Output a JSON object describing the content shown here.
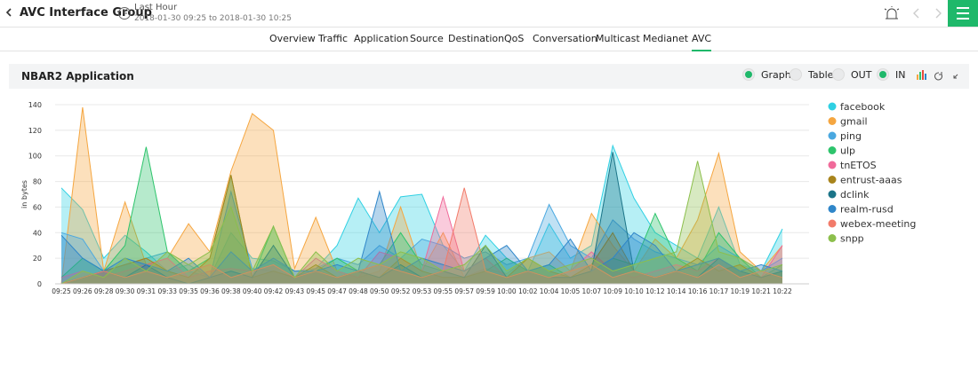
{
  "header": {
    "title": "AVC Interface Group",
    "time_label": "Last Hour",
    "time_range": "2018-01-30 09:25 to 2018-01-30 10:25"
  },
  "tabs": {
    "items": [
      "Overview",
      "Traffic",
      "Application",
      "Source",
      "Destination",
      "QoS",
      "Conversation",
      "Multicast",
      "Medianet",
      "AVC"
    ],
    "active": "AVC"
  },
  "panel": {
    "title": "NBAR2 Application",
    "options": [
      "Graph",
      "Table",
      "OUT",
      "IN"
    ],
    "selected": [
      "Graph",
      "IN"
    ]
  },
  "chart_data": {
    "type": "area",
    "y_label": "in bytes",
    "categories": [
      "09:25",
      "09:26",
      "09:28",
      "09:30",
      "09:31",
      "09:33",
      "09:35",
      "09:36",
      "09:38",
      "09:40",
      "09:42",
      "09:43",
      "09:45",
      "09:47",
      "09:48",
      "09:50",
      "09:52",
      "09:53",
      "09:55",
      "09:57",
      "09:59",
      "10:00",
      "10:02",
      "10:04",
      "10:05",
      "10:07",
      "10:09",
      "10:10",
      "10:12",
      "10:14",
      "10:16",
      "10:17",
      "10:19",
      "10:21",
      "10:22"
    ],
    "ylim": [
      0,
      140
    ],
    "yticks": [
      0,
      20,
      40,
      60,
      80,
      100,
      120,
      140
    ],
    "grid": true,
    "legend": "right",
    "series": [
      {
        "name": "facebook",
        "color": "#2fd0e3",
        "values": [
          75,
          58,
          20,
          38,
          25,
          10,
          15,
          5,
          40,
          20,
          18,
          10,
          12,
          30,
          67,
          40,
          68,
          70,
          30,
          10,
          38,
          20,
          10,
          47,
          20,
          30,
          108,
          67,
          40,
          30,
          20,
          60,
          15,
          10,
          43
        ]
      },
      {
        "name": "gmail",
        "color": "#f5a640",
        "values": [
          0,
          138,
          10,
          64,
          15,
          20,
          47,
          25,
          88,
          133,
          120,
          12,
          52,
          10,
          5,
          10,
          60,
          10,
          40,
          5,
          12,
          8,
          20,
          25,
          10,
          55,
          30,
          10,
          35,
          20,
          50,
          102,
          25,
          10,
          30
        ]
      },
      {
        "name": "ping",
        "color": "#4aa8e0",
        "values": [
          40,
          35,
          10,
          15,
          20,
          25,
          10,
          5,
          72,
          12,
          10,
          5,
          12,
          20,
          15,
          30,
          20,
          35,
          30,
          20,
          25,
          15,
          20,
          62,
          30,
          20,
          50,
          35,
          25,
          20,
          15,
          30,
          20,
          10,
          20
        ]
      },
      {
        "name": "ulp",
        "color": "#2ec46c",
        "values": [
          5,
          20,
          10,
          30,
          107,
          25,
          10,
          20,
          85,
          5,
          45,
          5,
          10,
          20,
          10,
          15,
          40,
          15,
          10,
          5,
          10,
          20,
          10,
          15,
          5,
          10,
          20,
          15,
          55,
          20,
          10,
          40,
          20,
          5,
          15
        ]
      },
      {
        "name": "tnETOS",
        "color": "#f06a9a",
        "values": [
          5,
          10,
          5,
          10,
          15,
          20,
          5,
          10,
          12,
          10,
          15,
          5,
          20,
          10,
          5,
          25,
          20,
          10,
          68,
          10,
          20,
          5,
          10,
          5,
          10,
          25,
          10,
          5,
          10,
          15,
          10,
          20,
          10,
          5,
          30
        ]
      },
      {
        "name": "entrust-aaas",
        "color": "#a8841c",
        "values": [
          0,
          5,
          10,
          15,
          20,
          10,
          5,
          20,
          85,
          5,
          10,
          5,
          15,
          5,
          10,
          5,
          20,
          10,
          5,
          5,
          10,
          5,
          20,
          10,
          5,
          15,
          40,
          10,
          5,
          10,
          20,
          10,
          15,
          5,
          10
        ]
      },
      {
        "name": "dclink",
        "color": "#1b7488",
        "values": [
          0,
          5,
          10,
          5,
          15,
          5,
          0,
          5,
          10,
          5,
          30,
          5,
          10,
          5,
          10,
          5,
          15,
          5,
          10,
          5,
          30,
          5,
          10,
          5,
          5,
          10,
          103,
          10,
          5,
          10,
          5,
          20,
          10,
          5,
          10
        ]
      },
      {
        "name": "realm-rusd",
        "color": "#2f86c9",
        "values": [
          38,
          20,
          10,
          20,
          15,
          10,
          20,
          5,
          25,
          10,
          20,
          10,
          10,
          15,
          10,
          72,
          10,
          20,
          15,
          10,
          20,
          30,
          10,
          15,
          35,
          10,
          20,
          40,
          30,
          10,
          15,
          20,
          10,
          15,
          10
        ]
      },
      {
        "name": "webex-meeting",
        "color": "#f27b6a",
        "values": [
          0,
          5,
          10,
          5,
          10,
          5,
          10,
          15,
          5,
          10,
          15,
          5,
          10,
          5,
          10,
          15,
          10,
          5,
          10,
          75,
          10,
          5,
          10,
          5,
          10,
          15,
          5,
          10,
          5,
          10,
          5,
          15,
          5,
          10,
          5
        ]
      },
      {
        "name": "snpp",
        "color": "#8cbf4c",
        "values": [
          0,
          10,
          5,
          20,
          10,
          25,
          15,
          25,
          60,
          10,
          45,
          5,
          25,
          10,
          20,
          15,
          25,
          20,
          10,
          15,
          30,
          10,
          20,
          10,
          15,
          20,
          10,
          15,
          20,
          25,
          96,
          25,
          20,
          10,
          15
        ]
      }
    ]
  }
}
